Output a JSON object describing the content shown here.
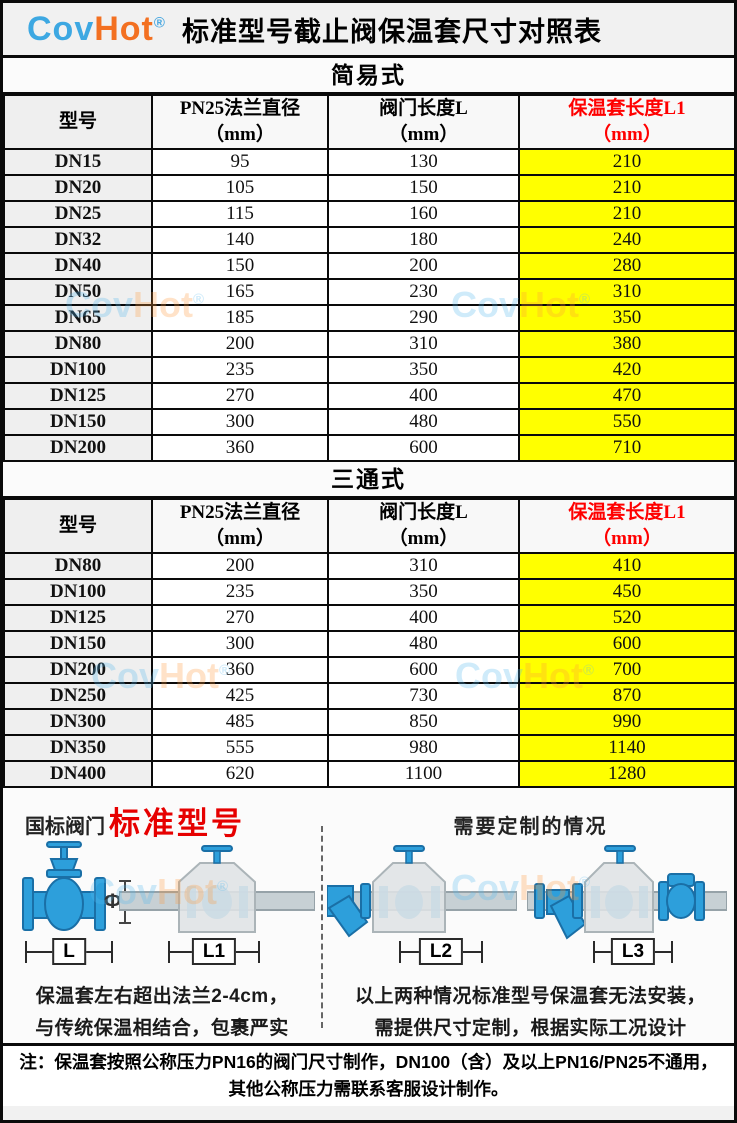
{
  "header": {
    "logo": {
      "cov": "Cov",
      "hot": "Hot",
      "reg": "®"
    },
    "title": "标准型号截止阀保温套尺寸对照表"
  },
  "watermark": {
    "cov": "Cov",
    "hot": "Hot",
    "reg": "®"
  },
  "colors": {
    "logo_blue": "#3DA8E2",
    "logo_orange": "#F37021",
    "highlight_yellow": "#FFFF00",
    "accent_red": "#FF0000",
    "model_column_grey": "#EFEFEF"
  },
  "sections": [
    {
      "name": "简易式",
      "columns": [
        {
          "title": "型号",
          "unit": "",
          "red": false
        },
        {
          "title": "PN25法兰直径",
          "unit": "（mm）",
          "red": false
        },
        {
          "title": "阀门长度L",
          "unit": "（mm）",
          "red": false
        },
        {
          "title": "保温套长度L1",
          "unit": "（mm）",
          "red": true
        }
      ],
      "rows": [
        [
          "DN15",
          "95",
          "130",
          "210"
        ],
        [
          "DN20",
          "105",
          "150",
          "210"
        ],
        [
          "DN25",
          "115",
          "160",
          "210"
        ],
        [
          "DN32",
          "140",
          "180",
          "240"
        ],
        [
          "DN40",
          "150",
          "200",
          "280"
        ],
        [
          "DN50",
          "165",
          "230",
          "310"
        ],
        [
          "DN65",
          "185",
          "290",
          "350"
        ],
        [
          "DN80",
          "200",
          "310",
          "380"
        ],
        [
          "DN100",
          "235",
          "350",
          "420"
        ],
        [
          "DN125",
          "270",
          "400",
          "470"
        ],
        [
          "DN150",
          "300",
          "480",
          "550"
        ],
        [
          "DN200",
          "360",
          "600",
          "710"
        ]
      ]
    },
    {
      "name": "三通式",
      "columns": [
        {
          "title": "型号",
          "unit": "",
          "red": false
        },
        {
          "title": "PN25法兰直径",
          "unit": "（mm）",
          "red": false
        },
        {
          "title": "阀门长度L",
          "unit": "（mm）",
          "red": false
        },
        {
          "title": "保温套长度L1",
          "unit": "（mm）",
          "red": true
        }
      ],
      "rows": [
        [
          "DN80",
          "200",
          "310",
          "410"
        ],
        [
          "DN100",
          "235",
          "350",
          "450"
        ],
        [
          "DN125",
          "270",
          "400",
          "520"
        ],
        [
          "DN150",
          "300",
          "480",
          "600"
        ],
        [
          "DN200",
          "360",
          "600",
          "700"
        ],
        [
          "DN250",
          "425",
          "730",
          "870"
        ],
        [
          "DN300",
          "485",
          "850",
          "990"
        ],
        [
          "DN350",
          "555",
          "980",
          "1140"
        ],
        [
          "DN400",
          "620",
          "1100",
          "1280"
        ]
      ]
    }
  ],
  "illustration": {
    "left_label": "国标阀门",
    "left_title": "标准型号",
    "right_title": "需要定制的情况",
    "phi": "Φ",
    "dim_l": "L",
    "dim_l1": "L1",
    "dim_l2": "L2",
    "dim_l3": "L3",
    "left_caption_1": "保温套左右超出法兰2-4cm，",
    "left_caption_2": "与传统保温相结合，包裹严实",
    "right_caption_1": "以上两种情况标准型号保温套无法安装，",
    "right_caption_2": "需提供尺寸定制，根据实际工况设计"
  },
  "note": "注：保温套按照公称压力PN16的阀门尺寸制作，DN100（含）及以上PN16/PN25不通用，其他公称压力需联系客服设计制作。"
}
